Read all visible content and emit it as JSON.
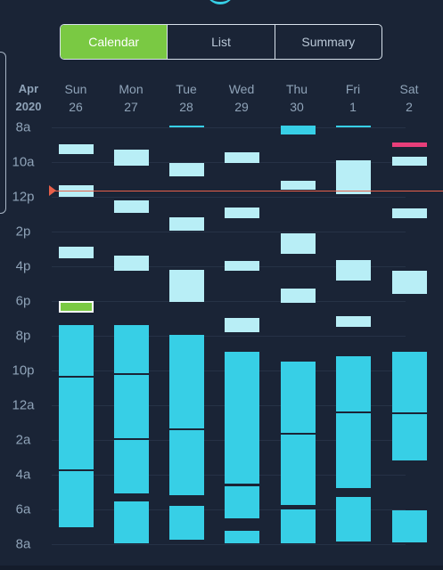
{
  "tabs": [
    {
      "label": "Calendar",
      "active": true
    },
    {
      "label": "List",
      "active": false
    },
    {
      "label": "Summary",
      "active": false
    }
  ],
  "header": {
    "month": "Apr",
    "year": "2020",
    "days": [
      {
        "dow": "Sun",
        "date": "26"
      },
      {
        "dow": "Mon",
        "date": "27"
      },
      {
        "dow": "Tue",
        "date": "28"
      },
      {
        "dow": "Wed",
        "date": "29"
      },
      {
        "dow": "Thu",
        "date": "30"
      },
      {
        "dow": "Fri",
        "date": "1"
      },
      {
        "dow": "Sat",
        "date": "2"
      }
    ]
  },
  "time_labels": [
    "8a",
    "10a",
    "12p",
    "2p",
    "4p",
    "6p",
    "8p",
    "10p",
    "12a",
    "2a",
    "4a",
    "6a",
    "8a"
  ],
  "colors": {
    "background": "#1a2436",
    "accent_green": "#7ac943",
    "block_light": "#b8eef6",
    "block_sleep": "#37cfe6",
    "now_line": "#e8604a",
    "pink": "#e83e7a"
  },
  "icons": [
    "now-indicator-icon"
  ]
}
